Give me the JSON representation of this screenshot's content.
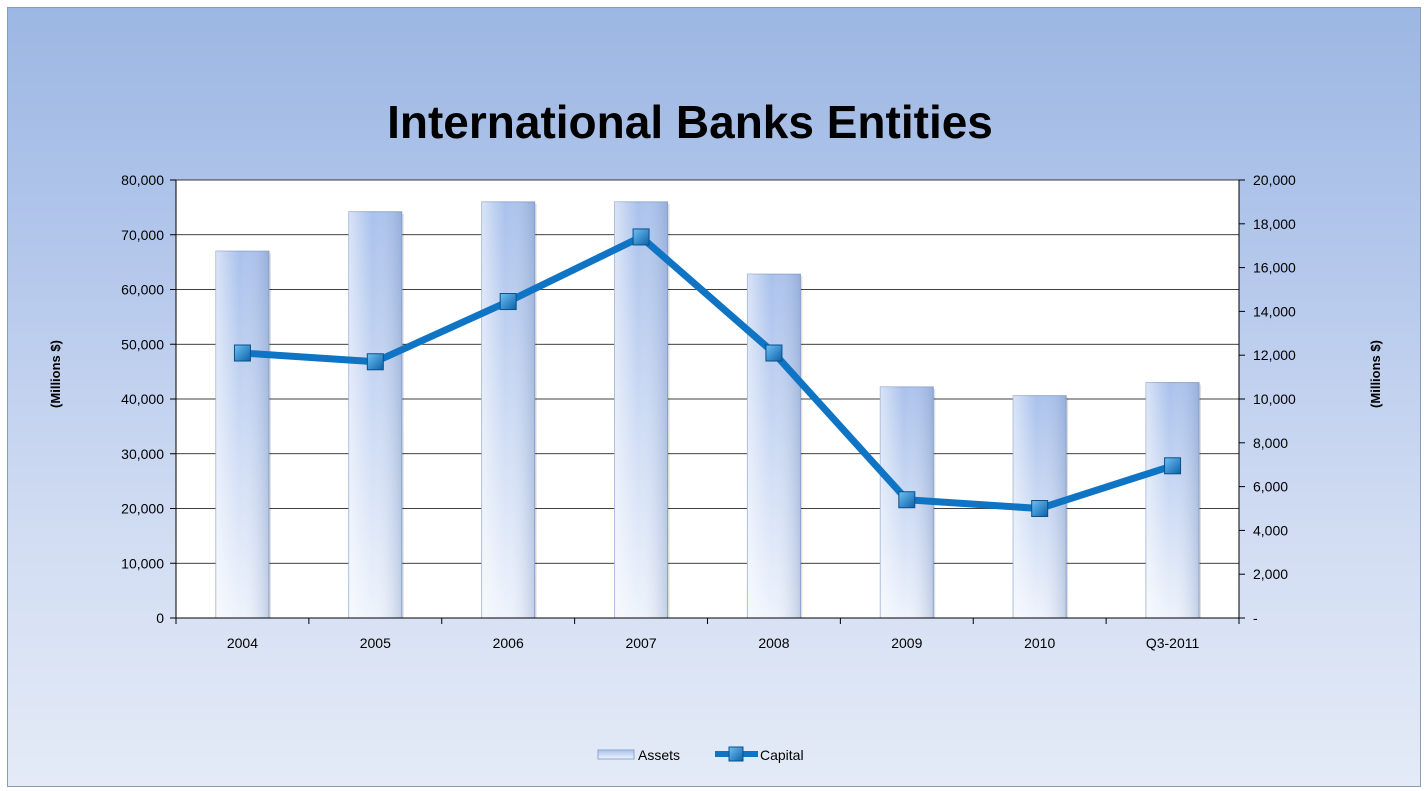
{
  "chart_data": {
    "type": "bar+line",
    "title": "International Banks Entities",
    "categories": [
      "2004",
      "2005",
      "2006",
      "2007",
      "2008",
      "2009",
      "2010",
      "Q3-2011"
    ],
    "series": [
      {
        "name": "Assets",
        "type": "bar",
        "axis": "left",
        "values": [
          67000,
          74200,
          76000,
          76000,
          62800,
          42200,
          40600,
          43000
        ]
      },
      {
        "name": "Capital",
        "type": "line",
        "axis": "right",
        "values": [
          12100,
          11700,
          14450,
          17400,
          12100,
          5400,
          5000,
          6950
        ]
      }
    ],
    "y_left": {
      "label": "(Millions $)",
      "ylim": [
        0,
        80000
      ],
      "ticks": [
        "0",
        "10,000",
        "20,000",
        "30,000",
        "40,000",
        "50,000",
        "60,000",
        "70,000",
        "80,000"
      ]
    },
    "y_right": {
      "label": "(Millions $)",
      "ylim": [
        0,
        20000
      ],
      "ticks": [
        "-",
        "2,000",
        "4,000",
        "6,000",
        "8,000",
        "10,000",
        "12,000",
        "14,000",
        "16,000",
        "18,000",
        "20,000"
      ]
    },
    "grid": true,
    "legend": "bottom-center",
    "colors": {
      "bar_top": "#a9c1ec",
      "bar_bottom": "#eef3fc",
      "bar_edge": "#8ea6cf",
      "line": "#0e74c3",
      "marker": "#1a85d4",
      "grid": "#000000"
    }
  }
}
